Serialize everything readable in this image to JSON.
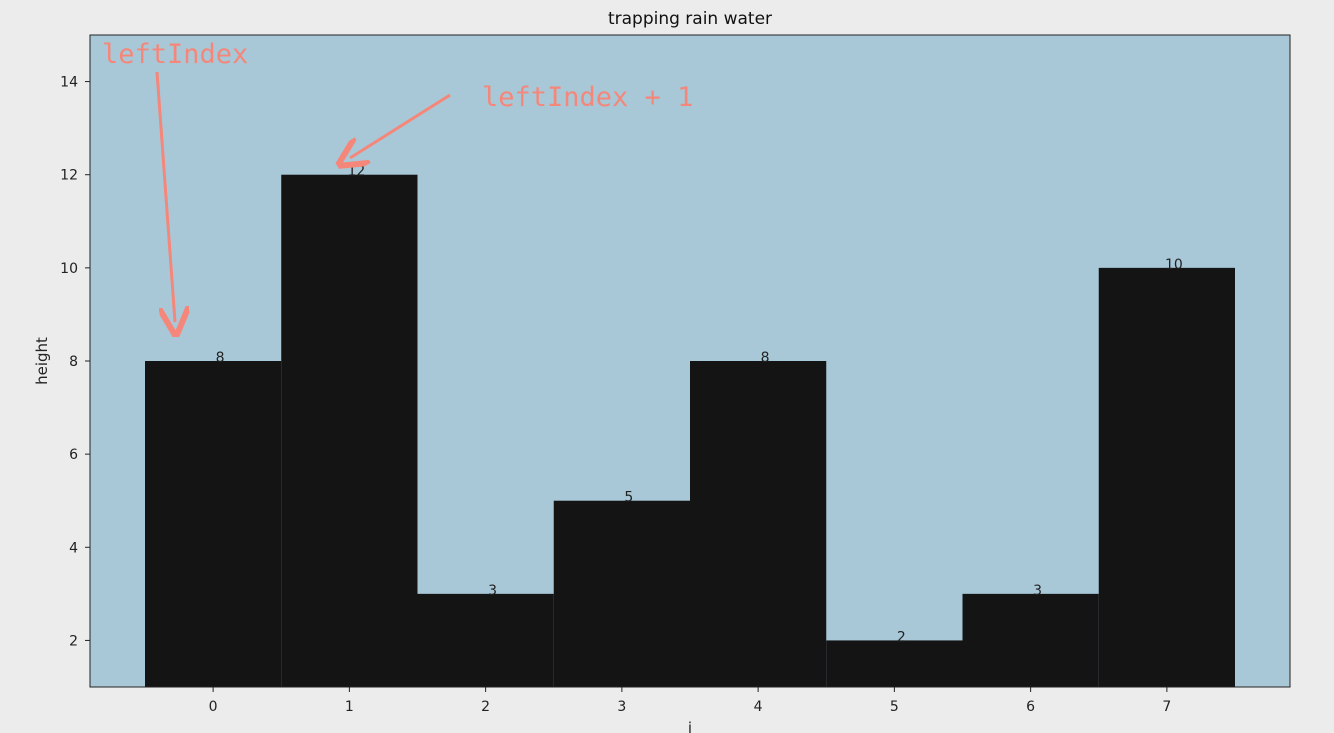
{
  "chart_data": {
    "type": "bar",
    "title": "trapping rain water",
    "xlabel": "i",
    "ylabel": "height",
    "categories": [
      "0",
      "1",
      "2",
      "3",
      "4",
      "5",
      "6",
      "7"
    ],
    "values": [
      8,
      12,
      3,
      5,
      8,
      2,
      3,
      10
    ],
    "ylim": [
      1,
      15
    ],
    "yticks": [
      2,
      4,
      6,
      8,
      10,
      12,
      14
    ],
    "grid": false,
    "colors": {
      "plot_background": "#a8c8d8",
      "bar": "#141414",
      "annotation": "#f5877a"
    },
    "annotations": [
      {
        "text": "leftIndex",
        "target_index": 0
      },
      {
        "text": "leftIndex + 1",
        "target_index": 1
      }
    ]
  }
}
